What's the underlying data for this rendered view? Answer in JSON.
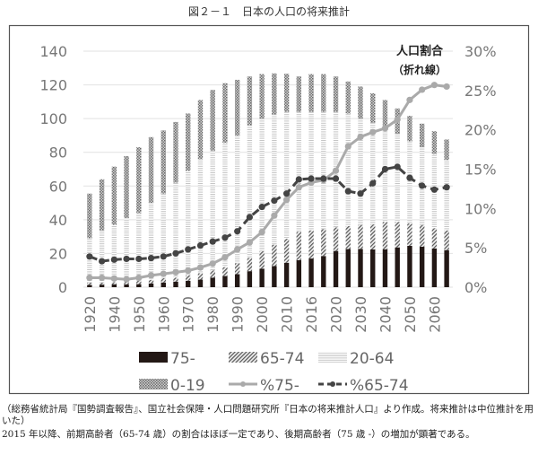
{
  "figure_title": "図２－１　日本の人口の将来推計",
  "notes": [
    "（総務省統計局『国勢調査報告』、国立社会保障・人口問題研究所『日本の将来推計人口』より作成。将来推計は中位推計を用いた）",
    "2015 年以降、前期高齢者（65-74 歳）の割合はほぼ一定であり、後期高齢者（75 歳 -）の増加が顕著である。"
  ],
  "chart_data": {
    "type": "bar",
    "stacked": true,
    "title": "図２－１　日本の人口の将来推計",
    "annotation": [
      "人口割合",
      "（折れ線）"
    ],
    "categories": [
      "1920",
      "",
      "1940",
      "",
      "1950",
      "",
      "1960",
      "",
      "1970",
      "",
      "1980",
      "",
      "1990",
      "",
      "2000",
      "",
      "2010",
      "",
      "2016",
      "",
      "2020",
      "",
      "2030",
      "",
      "2040",
      "",
      "2050",
      "",
      "2060",
      ""
    ],
    "ylim": [
      0,
      140
    ],
    "yticks": [
      0,
      20,
      40,
      60,
      80,
      100,
      120,
      140
    ],
    "y2lim": [
      0,
      30
    ],
    "y2ticks": [
      "0%",
      "5%",
      "10%",
      "15%",
      "20%",
      "25%",
      "30%"
    ],
    "grid": true,
    "legend_position": "bottom",
    "series": [
      {
        "name": "75-",
        "kind": "bar",
        "color": "#231815",
        "values": [
          1.3,
          1.5,
          1.7,
          1.7,
          1.8,
          2.2,
          2.8,
          3.3,
          3.8,
          4.5,
          5.6,
          6.6,
          7.7,
          9.5,
          11,
          12.5,
          14.5,
          16,
          17,
          18.5,
          21.5,
          22.6,
          22.7,
          22.4,
          22.5,
          23.6,
          24.5,
          24,
          23,
          22
        ]
      },
      {
        "name": "65-74",
        "kind": "bar",
        "color": "#777777",
        "values": [
          1.4,
          1.2,
          1.3,
          1.8,
          2.1,
          2.2,
          2.5,
          2.4,
          3.3,
          3.8,
          4.4,
          5.3,
          6.5,
          7.9,
          10.3,
          12.7,
          14.2,
          16.8,
          16.7,
          15.9,
          14,
          13.7,
          14.2,
          14.8,
          16.2,
          15.1,
          13.3,
          12.9,
          12,
          11.7
        ]
      },
      {
        "name": "20-64",
        "kind": "bar",
        "color": "#cccccc",
        "values": [
          26.3,
          31,
          34,
          37.5,
          40.1,
          45.6,
          50.2,
          56.3,
          61.9,
          67.7,
          71,
          73.6,
          75.8,
          78.6,
          78.7,
          77.3,
          75.3,
          71.2,
          70.3,
          69.6,
          68.5,
          66.7,
          63.1,
          60.3,
          56.3,
          52.3,
          48.7,
          46.1,
          44,
          41.7
        ]
      },
      {
        "name": "0-19",
        "kind": "bar",
        "color": "#999999",
        "values": [
          26.5,
          30.3,
          34.5,
          36.7,
          39,
          39,
          37.5,
          36,
          34,
          35,
          36,
          35.5,
          33,
          29,
          26.4,
          24.3,
          22.6,
          21,
          22.4,
          22.4,
          21,
          19,
          19,
          17.5,
          16,
          15,
          15.1,
          14,
          13.5,
          12.2
        ]
      },
      {
        "name": "%75-",
        "kind": "line",
        "axis": "right",
        "color": "#aaaaaa",
        "dash": "solid",
        "values": [
          1.2,
          1.2,
          1.1,
          1.0,
          1.2,
          1.5,
          1.7,
          1.9,
          2.1,
          2.5,
          3.0,
          3.8,
          4.8,
          5.7,
          7.0,
          9.1,
          11.1,
          12.7,
          13.3,
          13.6,
          14.8,
          17.9,
          19.1,
          19.7,
          20.2,
          21.3,
          23.8,
          25.1,
          25.7,
          25.5
        ]
      },
      {
        "name": "%65-74",
        "kind": "line",
        "axis": "right",
        "color": "#444444",
        "dash": "dashed",
        "values": [
          3.9,
          3.3,
          3.5,
          3.6,
          3.6,
          3.7,
          3.9,
          4.3,
          4.8,
          5.3,
          5.8,
          6.3,
          7.1,
          8.9,
          10.2,
          11.0,
          11.9,
          13.7,
          13.8,
          13.8,
          13.8,
          12.2,
          11.9,
          13.2,
          15.0,
          15.3,
          13.9,
          12.9,
          12.4,
          12.7
        ]
      }
    ]
  }
}
